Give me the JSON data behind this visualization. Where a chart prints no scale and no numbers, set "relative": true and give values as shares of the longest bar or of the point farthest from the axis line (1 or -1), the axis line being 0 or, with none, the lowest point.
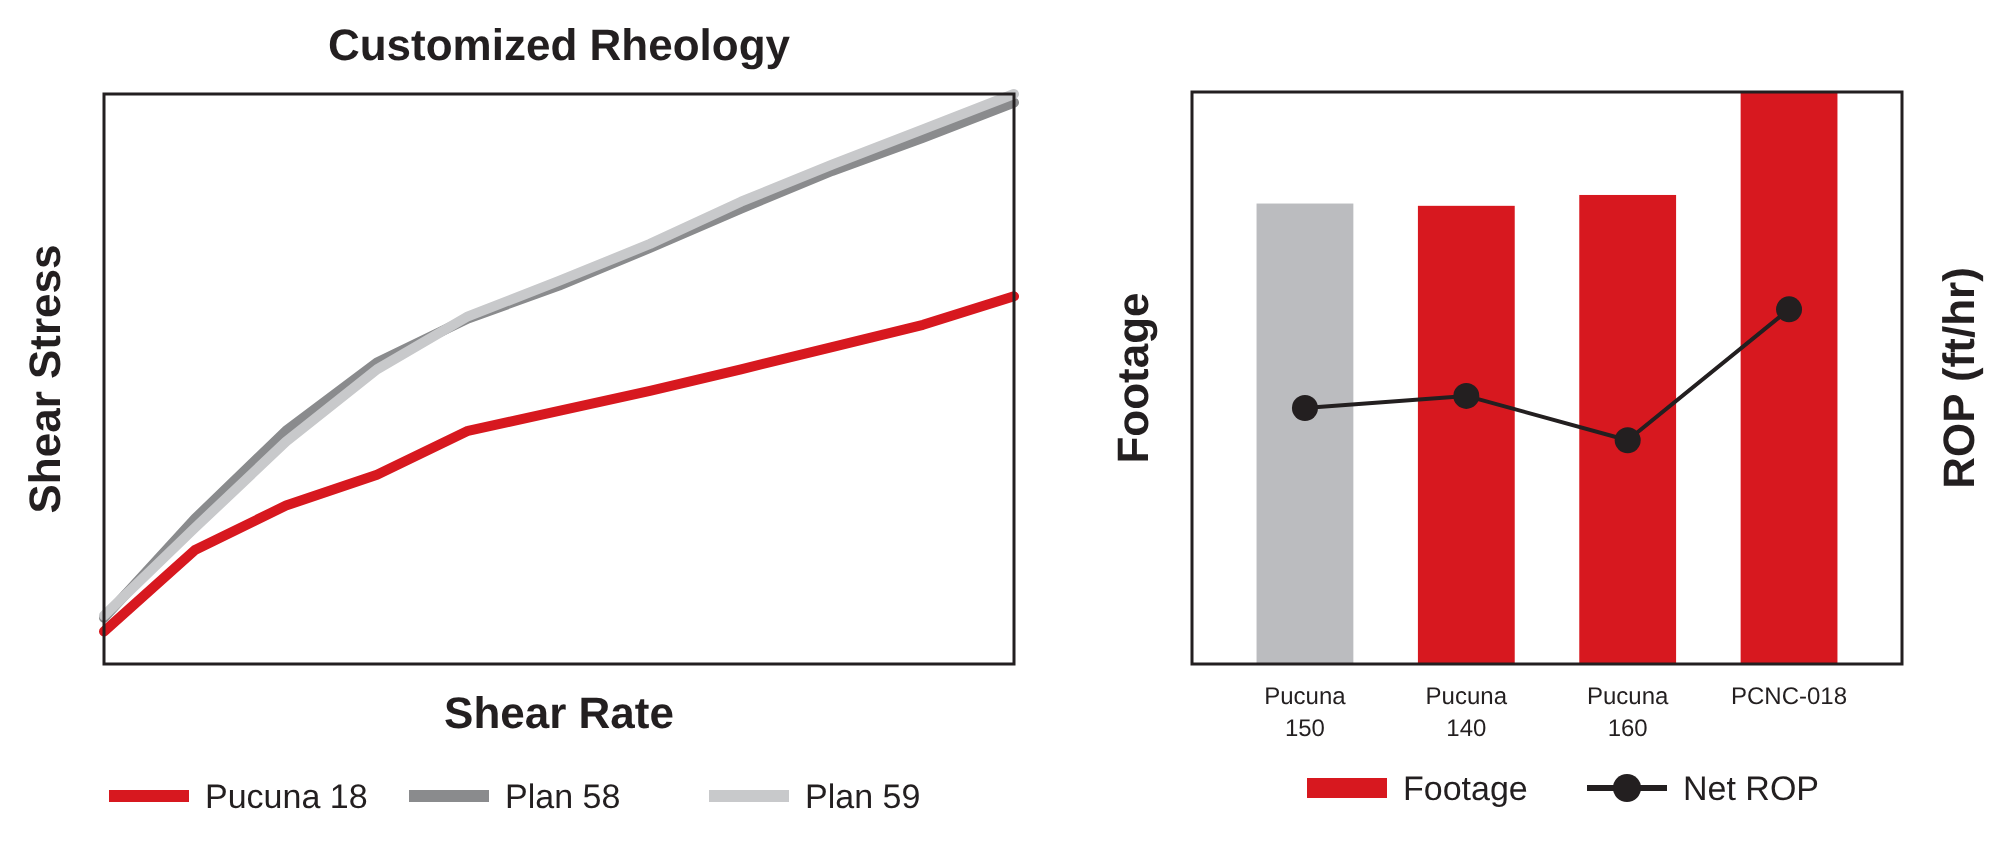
{
  "chart_data": [
    {
      "type": "line",
      "title": "Customized Rheology",
      "xlabel": "Shear Rate",
      "ylabel": "Shear Stress",
      "relative": true,
      "legend": "bottom",
      "tick_labels": false,
      "categories": [
        null,
        null,
        null,
        null,
        null,
        null,
        null,
        null,
        null,
        null,
        null
      ],
      "series": [
        {
          "name": "Pucuna 18",
          "color": "#d7181f",
          "values": [
            0.057,
            0.2,
            0.278,
            0.332,
            0.409,
            0.444,
            0.479,
            0.517,
            0.556,
            0.595,
            0.645
          ]
        },
        {
          "name": "Plan 58",
          "color": "#8a8b8d",
          "values": [
            0.081,
            0.255,
            0.409,
            0.529,
            0.606,
            0.664,
            0.73,
            0.799,
            0.865,
            0.923,
            0.985
          ]
        },
        {
          "name": "Plan 59",
          "color": "#c8c9cb",
          "values": [
            0.085,
            0.239,
            0.39,
            0.517,
            0.61,
            0.672,
            0.737,
            0.811,
            0.876,
            0.938,
            1
          ]
        }
      ]
    },
    {
      "type": "bar",
      "ylabel": "Footage",
      "y2label": "ROP (ft/hr)",
      "relative": true,
      "legend": "bottom",
      "tick_labels": "x",
      "categories": [
        "Pucuna 150",
        "Pucuna 140",
        "Pucuna 160",
        "PCNC-018"
      ],
      "series": [
        {
          "name": "Footage",
          "color": "#d7181f",
          "colors": [
            "#bbbcbf",
            "#d7181f",
            "#d7181f",
            "#d7181f"
          ],
          "values": [
            0.805,
            0.801,
            0.82,
            1
          ]
        },
        {
          "name": "Net ROP",
          "type": "line",
          "axis": "y2",
          "color": "#231f20",
          "marker": "circle",
          "values": [
            0.722,
            0.756,
            0.631,
            1
          ]
        }
      ]
    }
  ]
}
